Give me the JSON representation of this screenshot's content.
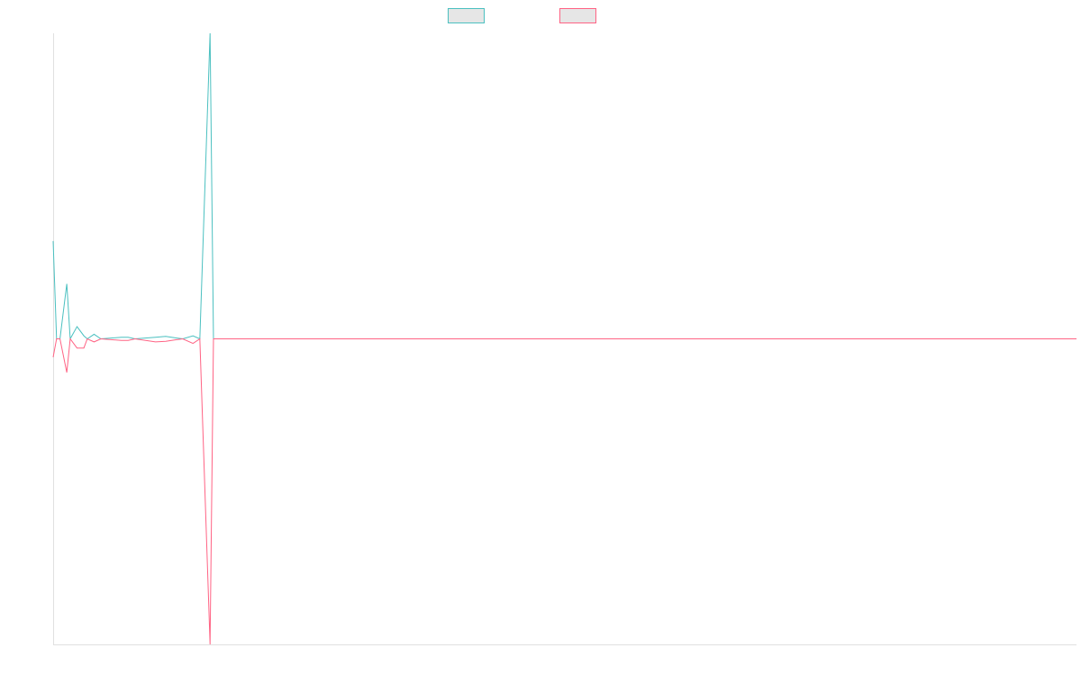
{
  "chart_data": {
    "type": "line",
    "x": [
      0,
      1,
      2,
      4,
      5,
      7,
      9,
      10,
      12,
      14,
      20,
      22,
      24,
      30,
      33,
      36,
      38,
      41,
      43,
      46,
      47,
      300
    ],
    "series": [
      {
        "color": "#4bc0c0",
        "values": [
          32,
          0,
          0,
          18,
          0,
          4,
          1,
          0,
          1.5,
          0,
          0.5,
          0.5,
          0,
          0.5,
          0.8,
          0.3,
          0,
          1,
          0,
          100,
          0,
          0
        ]
      },
      {
        "color": "#ff6384",
        "values": [
          -6,
          0,
          0,
          -11,
          0,
          -3,
          -3,
          0,
          -1,
          0,
          -0.5,
          -0.5,
          0,
          -1,
          -0.8,
          -0.3,
          0,
          -1.5,
          0,
          -100,
          0,
          0
        ]
      }
    ],
    "xlim": [
      0,
      300
    ],
    "ylim": [
      -100,
      100
    ],
    "legend": "top"
  }
}
